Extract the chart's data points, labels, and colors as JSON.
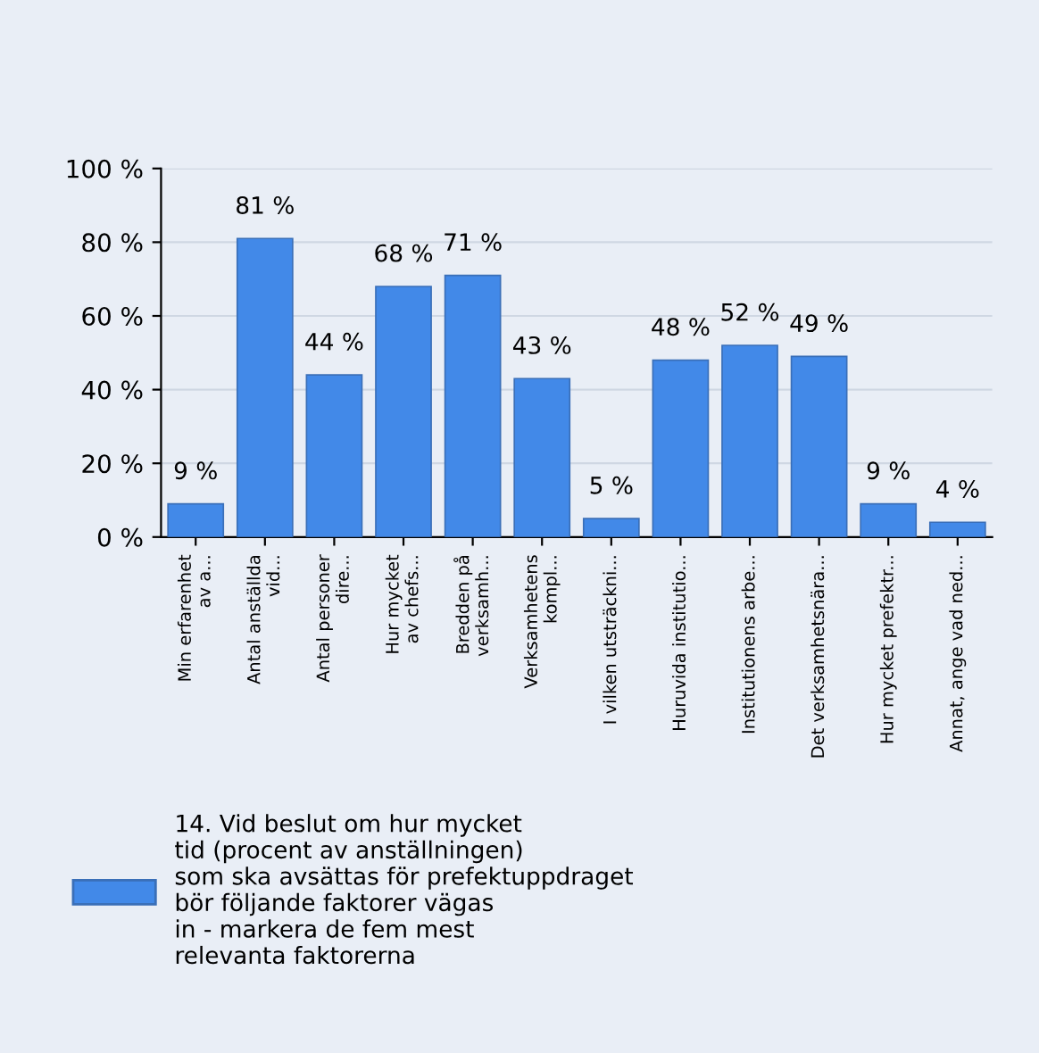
{
  "chart_data": {
    "type": "bar",
    "categories": [
      "Min erfarenhet\nav a...",
      "Antal anställda\nvid...",
      "Antal personer\ndire...",
      "Hur mycket\nav chefs...",
      "Bredden på\nverksamh...",
      "Verksamhetens\nkompl...",
      "I vilken utsträckni...",
      "Huruvida institutio...",
      "Institutionens arbe...",
      "Det verksamhetsnära...",
      "Hur mycket prefektr...",
      "Annat, ange vad ned..."
    ],
    "series": [
      {
        "name": "14. Vid beslut om hur mycket\ntid (procent av anställningen)\nsom ska avsättas för prefektuppdraget\nbör följande faktorer vägas\nin - markera de fem mest\nrelevanta faktorerna",
        "color": "#4289e8",
        "values": [
          9,
          81,
          44,
          68,
          71,
          43,
          5,
          48,
          52,
          49,
          9,
          4
        ],
        "value_labels": [
          "9 %",
          "81 %",
          "44 %",
          "68 %",
          "71 %",
          "43 %",
          "5 %",
          "48 %",
          "52 %",
          "49 %",
          "9 %",
          "4 %"
        ]
      }
    ],
    "ylim": [
      0,
      100
    ],
    "yticks": [
      {
        "value": 0,
        "label": "0 %"
      },
      {
        "value": 20,
        "label": "20 %"
      },
      {
        "value": 40,
        "label": "40 %"
      },
      {
        "value": 60,
        "label": "60 %"
      },
      {
        "value": 80,
        "label": "80 %"
      },
      {
        "value": 100,
        "label": "100 %"
      }
    ],
    "grid": true,
    "legend": "bottom left"
  }
}
